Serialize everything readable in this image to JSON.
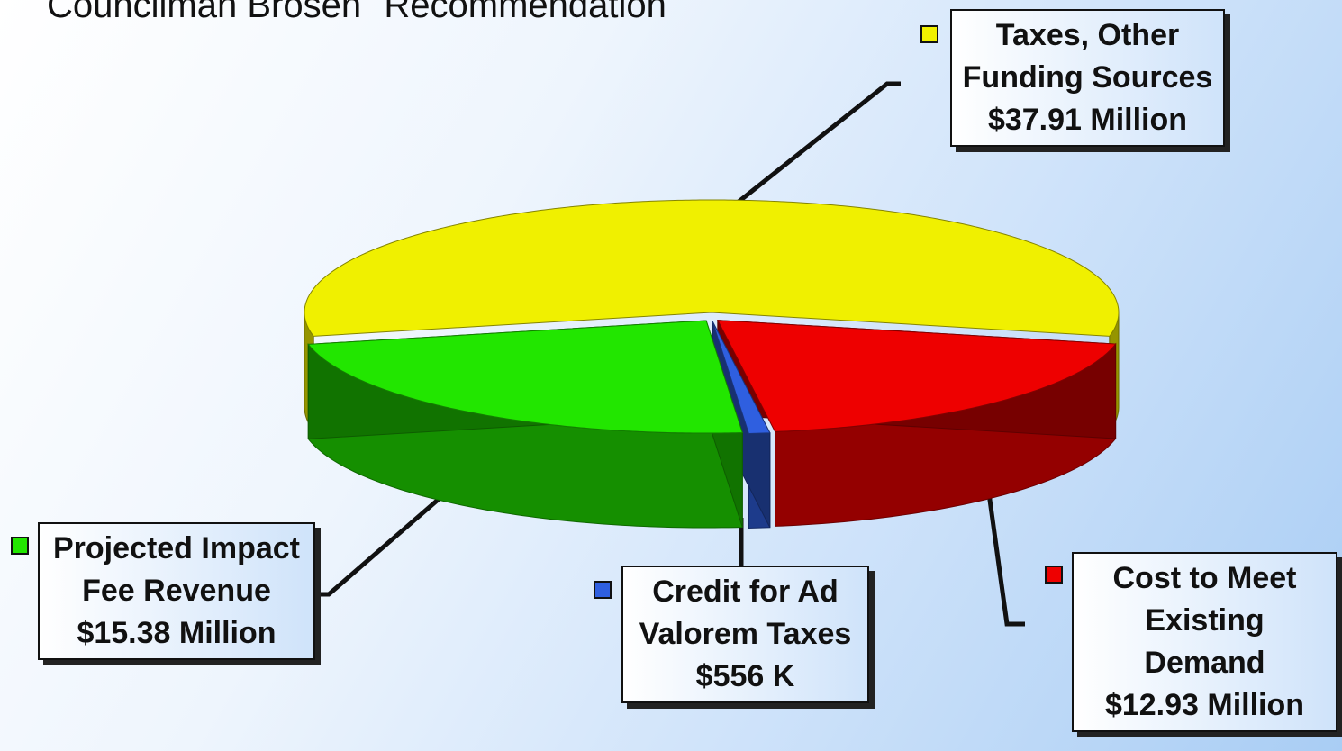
{
  "chart_data": {
    "type": "pie",
    "title": "Councilman Brosen\" Recommendation",
    "categories": [
      "Taxes, Other Funding Sources",
      "Cost to Meet Existing Demand",
      "Credit for Ad Valorem Taxes",
      "Projected Impact Fee Revenue"
    ],
    "values": [
      37.91,
      12.93,
      0.556,
      15.38
    ],
    "value_labels": [
      "$37.91 Million",
      "$12.93 Million",
      "$556 K",
      "$15.38 Million"
    ],
    "colors": [
      "#f0f000",
      "#ee0000",
      "#2f5fe0",
      "#22e600"
    ]
  }
}
